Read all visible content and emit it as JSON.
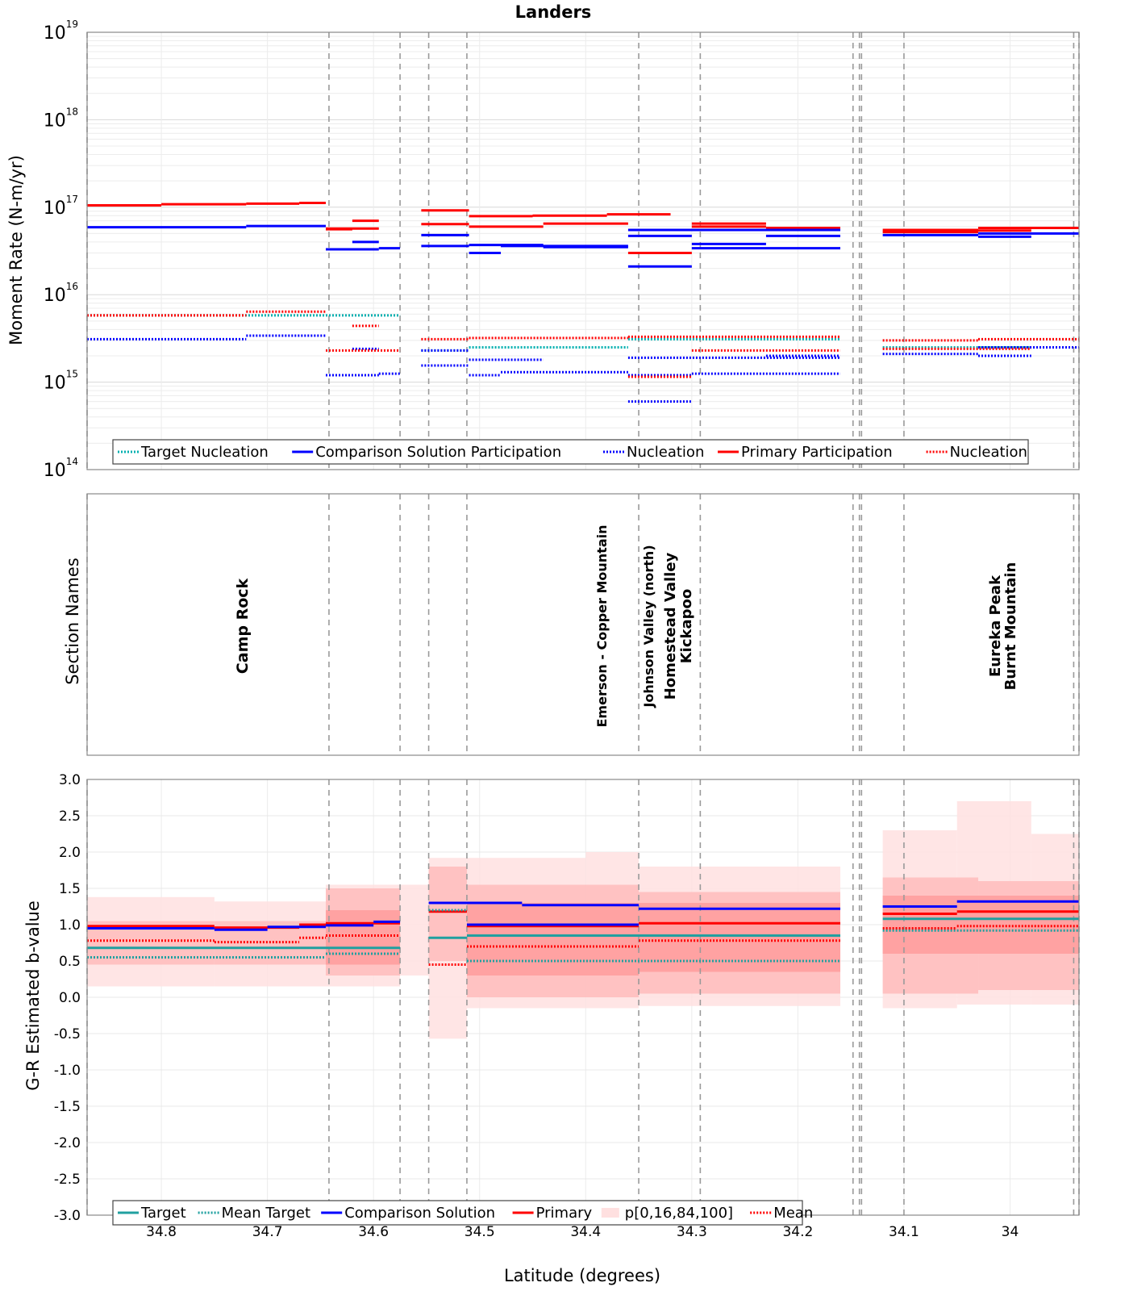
{
  "chart_data": {
    "title": "Landers",
    "type": "line",
    "xlabel": "Latitude (degrees)",
    "xlim": [
      34.87,
      33.935
    ],
    "x_ticks": [
      "34.8",
      "34.7",
      "34.6",
      "34.5",
      "34.4",
      "34.3",
      "34.2",
      "34.1",
      "34"
    ],
    "x_tick_values": [
      34.8,
      34.7,
      34.6,
      34.5,
      34.4,
      34.3,
      34.2,
      34.1,
      34.0
    ],
    "section_boundaries": [
      34.87,
      34.642,
      34.575,
      34.548,
      34.512,
      34.35,
      34.292,
      34.148,
      34.142,
      34.14,
      34.1,
      33.94,
      33.935
    ],
    "panels": {
      "moment_rate": {
        "ylabel": "Moment Rate (N-m/yr)",
        "scale": "log",
        "ylim": [
          100000000000000.0,
          1e+19
        ],
        "y_ticks": [
          {
            "base": "10",
            "exp": "14",
            "value": 14
          },
          {
            "base": "10",
            "exp": "15",
            "value": 15
          },
          {
            "base": "10",
            "exp": "16",
            "value": 16
          },
          {
            "base": "10",
            "exp": "17",
            "value": 17
          },
          {
            "base": "10",
            "exp": "18",
            "value": 18
          },
          {
            "base": "10",
            "exp": "19",
            "value": 19
          }
        ],
        "legend": [
          "Target Nucleation",
          "Comparison Solution Participation",
          "Nucleation",
          "Primary Participation",
          "Nucleation"
        ],
        "series": [
          {
            "name": "Primary Participation",
            "color": "#ff0000",
            "style": "solid",
            "segments": [
              [
                34.87,
                34.8,
                1.05e+17
              ],
              [
                34.8,
                34.72,
                1.08e+17
              ],
              [
                34.72,
                34.67,
                1.1e+17
              ],
              [
                34.67,
                34.645,
                1.12e+17
              ],
              [
                34.645,
                34.62,
                5.6e+16
              ],
              [
                34.62,
                34.595,
                7e+16
              ],
              [
                34.645,
                34.595,
                5.7e+16
              ],
              [
                34.555,
                34.51,
                9.2e+16
              ],
              [
                34.555,
                34.51,
                6.4e+16
              ],
              [
                34.51,
                34.45,
                7.9e+16
              ],
              [
                34.45,
                34.38,
                8e+16
              ],
              [
                34.38,
                34.32,
                8.3e+16
              ],
              [
                34.51,
                34.44,
                6e+16
              ],
              [
                34.44,
                34.36,
                6.5e+16
              ],
              [
                34.36,
                34.3,
                3e+16
              ],
              [
                34.3,
                34.23,
                6.5e+16
              ],
              [
                34.3,
                34.23,
                6e+16
              ],
              [
                34.23,
                34.16,
                5.8e+16
              ],
              [
                34.12,
                34.03,
                5.5e+16
              ],
              [
                34.03,
                33.935,
                5.8e+16
              ],
              [
                34.12,
                34.03,
                5.2e+16
              ],
              [
                34.03,
                33.98,
                5.4e+16
              ]
            ]
          },
          {
            "name": "Comparison Solution Participation",
            "color": "#0000ff",
            "style": "solid",
            "segments": [
              [
                34.87,
                34.72,
                5.9e+16
              ],
              [
                34.72,
                34.645,
                6.1e+16
              ],
              [
                34.645,
                34.595,
                3.3e+16
              ],
              [
                34.62,
                34.595,
                4e+16
              ],
              [
                34.595,
                34.575,
                3.4e+16
              ],
              [
                34.555,
                34.51,
                4.8e+16
              ],
              [
                34.555,
                34.51,
                3.6e+16
              ],
              [
                34.51,
                34.44,
                3.7e+16
              ],
              [
                34.51,
                34.48,
                3e+16
              ],
              [
                34.48,
                34.36,
                3.6e+16
              ],
              [
                34.44,
                34.36,
                3.5e+16
              ],
              [
                34.36,
                34.3,
                2.1e+16
              ],
              [
                34.36,
                34.3,
                4.7e+16
              ],
              [
                34.36,
                34.16,
                5.5e+16
              ],
              [
                34.3,
                34.23,
                3.8e+16
              ],
              [
                34.3,
                34.16,
                3.4e+16
              ],
              [
                34.23,
                34.16,
                4.7e+16
              ],
              [
                34.12,
                34.03,
                4.8e+16
              ],
              [
                34.03,
                33.935,
                5e+16
              ],
              [
                34.03,
                33.98,
                4.6e+16
              ]
            ]
          },
          {
            "name": "Target Nucleation",
            "color": "#00b0b0",
            "style": "dotted",
            "segments": [
              [
                34.87,
                34.575,
                5800000000000000.0
              ],
              [
                34.555,
                34.51,
                2300000000000000.0
              ],
              [
                34.51,
                34.36,
                2500000000000000.0
              ],
              [
                34.36,
                34.16,
                3100000000000000.0
              ],
              [
                34.12,
                33.98,
                2500000000000000.0
              ]
            ]
          },
          {
            "name": "Nucleation (Comparison)",
            "color": "#0000ff",
            "style": "dotted",
            "segments": [
              [
                34.87,
                34.72,
                3100000000000000.0
              ],
              [
                34.72,
                34.645,
                3400000000000000.0
              ],
              [
                34.645,
                34.595,
                1200000000000000.0
              ],
              [
                34.62,
                34.595,
                2400000000000000.0
              ],
              [
                34.595,
                34.575,
                1250000000000000.0
              ],
              [
                34.555,
                34.51,
                1550000000000000.0
              ],
              [
                34.555,
                34.51,
                2300000000000000.0
              ],
              [
                34.51,
                34.48,
                1200000000000000.0
              ],
              [
                34.51,
                34.44,
                1800000000000000.0
              ],
              [
                34.48,
                34.36,
                1300000000000000.0
              ],
              [
                34.36,
                34.3,
                600000000000000.0
              ],
              [
                34.36,
                34.3,
                1200000000000000.0
              ],
              [
                34.36,
                34.16,
                1900000000000000.0
              ],
              [
                34.3,
                34.16,
                1250000000000000.0
              ],
              [
                34.23,
                34.16,
                2000000000000000.0
              ],
              [
                34.12,
                34.03,
                2100000000000000.0
              ],
              [
                34.03,
                33.98,
                2000000000000000.0
              ],
              [
                34.03,
                33.935,
                2500000000000000.0
              ]
            ]
          },
          {
            "name": "Nucleation (Primary)",
            "color": "#ff0000",
            "style": "dotted",
            "segments": [
              [
                34.87,
                34.72,
                5800000000000000.0
              ],
              [
                34.72,
                34.645,
                6400000000000000.0
              ],
              [
                34.645,
                34.575,
                2300000000000000.0
              ],
              [
                34.62,
                34.595,
                4400000000000000.0
              ],
              [
                34.555,
                34.51,
                3100000000000000.0
              ],
              [
                34.51,
                34.36,
                3200000000000000.0
              ],
              [
                34.36,
                34.3,
                1150000000000000.0
              ],
              [
                34.36,
                34.16,
                3300000000000000.0
              ],
              [
                34.3,
                34.16,
                2300000000000000.0
              ],
              [
                34.12,
                34.03,
                3000000000000000.0
              ],
              [
                34.03,
                33.935,
                3100000000000000.0
              ],
              [
                34.12,
                33.98,
                2400000000000000.0
              ]
            ]
          }
        ]
      },
      "section_names": {
        "ylabel": "Section Names",
        "labels": [
          "Camp Rock",
          "Emerson - Copper Mountain",
          "Johnson Valley (north)",
          "Homestead Valley",
          "Kickapoo",
          "Eureka Peak",
          "Burnt Mountain"
        ]
      },
      "b_value": {
        "ylabel": "G-R Estimated b-value",
        "ylim": [
          -3.0,
          3.0
        ],
        "y_ticks": [
          "3.0",
          "2.5",
          "2.0",
          "1.5",
          "1.0",
          "0.5",
          "0.0",
          "-0.5",
          "-1.0",
          "-1.5",
          "-2.0",
          "-2.5",
          "-3.0"
        ],
        "y_tick_values": [
          3.0,
          2.5,
          2.0,
          1.5,
          1.0,
          0.5,
          0.0,
          -0.5,
          -1.0,
          -1.5,
          -2.0,
          -2.5,
          -3.0
        ],
        "legend": [
          "Target",
          "Mean Target",
          "Comparison Solution",
          "Primary",
          "p[0,16,84,100]",
          "Mean"
        ],
        "bands_outer": [
          [
            34.87,
            34.75,
            0.15,
            1.38
          ],
          [
            34.75,
            34.645,
            0.15,
            1.32
          ],
          [
            34.645,
            34.575,
            0.15,
            1.55
          ],
          [
            34.575,
            34.548,
            0.3,
            1.55
          ],
          [
            34.548,
            34.512,
            -0.57,
            1.92
          ],
          [
            34.512,
            34.4,
            -0.15,
            1.92
          ],
          [
            34.4,
            34.35,
            -0.15,
            2.0
          ],
          [
            34.35,
            34.16,
            -0.12,
            1.8
          ],
          [
            34.12,
            34.05,
            -0.15,
            2.3
          ],
          [
            34.05,
            33.98,
            -0.1,
            2.7
          ],
          [
            33.98,
            33.935,
            -0.1,
            2.25
          ]
        ],
        "bands_inner": [
          [
            34.87,
            34.75,
            0.45,
            1.05
          ],
          [
            34.75,
            34.645,
            0.45,
            1.05
          ],
          [
            34.645,
            34.575,
            0.3,
            1.5
          ],
          [
            34.548,
            34.512,
            0.5,
            1.8
          ],
          [
            34.512,
            34.35,
            0.0,
            1.55
          ],
          [
            34.35,
            34.16,
            0.05,
            1.45
          ],
          [
            34.12,
            34.03,
            0.05,
            1.65
          ],
          [
            34.03,
            33.935,
            0.1,
            1.6
          ]
        ],
        "bands_core": [
          [
            34.645,
            34.575,
            0.45,
            1.2
          ],
          [
            34.512,
            34.35,
            0.3,
            1.3
          ],
          [
            34.35,
            34.16,
            0.35,
            1.3
          ],
          [
            34.12,
            33.935,
            0.6,
            1.4
          ]
        ],
        "series": [
          {
            "name": "Primary",
            "color": "#ff0000",
            "style": "solid",
            "width": 3,
            "segments": [
              [
                34.87,
                34.75,
                0.98
              ],
              [
                34.75,
                34.67,
                0.96
              ],
              [
                34.67,
                34.645,
                1.0
              ],
              [
                34.645,
                34.575,
                1.02
              ],
              [
                34.548,
                34.512,
                1.18
              ],
              [
                34.512,
                34.35,
                0.98
              ],
              [
                34.35,
                34.16,
                1.02
              ],
              [
                34.12,
                34.05,
                1.15
              ],
              [
                34.05,
                33.935,
                1.18
              ]
            ]
          },
          {
            "name": "Comparison Solution",
            "color": "#0000ff",
            "style": "solid",
            "width": 3,
            "segments": [
              [
                34.87,
                34.75,
                0.95
              ],
              [
                34.75,
                34.7,
                0.93
              ],
              [
                34.7,
                34.645,
                0.97
              ],
              [
                34.645,
                34.6,
                0.99
              ],
              [
                34.6,
                34.575,
                1.04
              ],
              [
                34.548,
                34.46,
                1.3
              ],
              [
                34.46,
                34.35,
                1.27
              ],
              [
                34.35,
                34.16,
                1.22
              ],
              [
                34.512,
                34.35,
                1.0
              ],
              [
                34.12,
                34.05,
                1.25
              ],
              [
                34.05,
                33.935,
                1.32
              ]
            ]
          },
          {
            "name": "Target",
            "color": "#20a0a0",
            "style": "solid",
            "width": 3,
            "segments": [
              [
                34.87,
                34.575,
                0.68
              ],
              [
                34.548,
                34.512,
                0.82
              ],
              [
                34.512,
                34.16,
                0.85
              ],
              [
                34.12,
                33.935,
                1.08
              ]
            ]
          },
          {
            "name": "Mean Target",
            "color": "#20a0a0",
            "style": "dotted",
            "width": 3,
            "segments": [
              [
                34.87,
                34.645,
                0.55
              ],
              [
                34.645,
                34.575,
                0.6
              ],
              [
                34.548,
                34.512,
                1.2
              ],
              [
                34.512,
                34.16,
                0.5
              ],
              [
                34.12,
                33.935,
                0.92
              ]
            ]
          },
          {
            "name": "Mean",
            "color": "#ff0000",
            "style": "dotted",
            "width": 3,
            "segments": [
              [
                34.87,
                34.75,
                0.78
              ],
              [
                34.75,
                34.67,
                0.76
              ],
              [
                34.67,
                34.645,
                0.82
              ],
              [
                34.645,
                34.575,
                0.85
              ],
              [
                34.548,
                34.512,
                0.45
              ],
              [
                34.512,
                34.35,
                0.7
              ],
              [
                34.35,
                34.16,
                0.78
              ],
              [
                34.12,
                34.05,
                0.95
              ],
              [
                34.05,
                33.935,
                0.98
              ]
            ]
          }
        ]
      }
    }
  }
}
